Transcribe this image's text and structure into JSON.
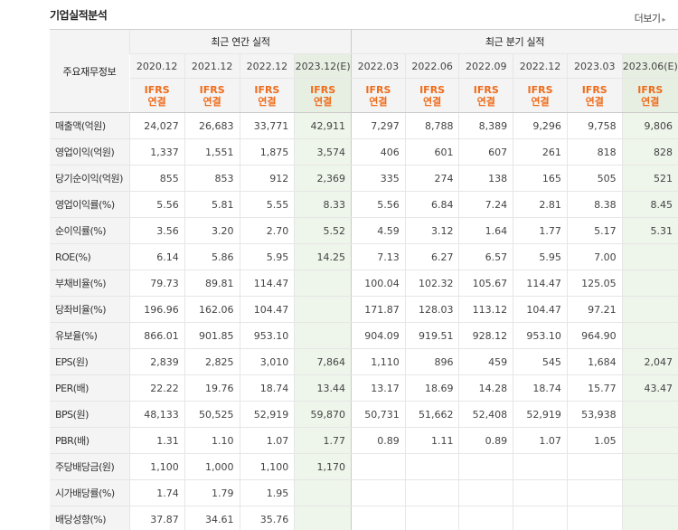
{
  "header": {
    "title": "기업실적분석",
    "more_label": "더보기"
  },
  "table": {
    "corner_label": "주요재무정보",
    "annual_group": "최근 연간 실적",
    "quarter_group": "최근 분기 실적",
    "ifrs_top": "IFRS",
    "ifrs_bottom": "연결",
    "periods": [
      "2020.12",
      "2021.12",
      "2022.12",
      "2023.12(E)",
      "2022.03",
      "2022.06",
      "2022.09",
      "2022.12",
      "2023.03",
      "2023.06(E)"
    ],
    "rows": [
      {
        "label": "매출액(억원)",
        "values": [
          "24,027",
          "26,683",
          "33,771",
          "42,911",
          "7,297",
          "8,788",
          "8,389",
          "9,296",
          "9,758",
          "9,806"
        ]
      },
      {
        "label": "영업이익(억원)",
        "values": [
          "1,337",
          "1,551",
          "1,875",
          "3,574",
          "406",
          "601",
          "607",
          "261",
          "818",
          "828"
        ]
      },
      {
        "label": "당기순이익(억원)",
        "values": [
          "855",
          "853",
          "912",
          "2,369",
          "335",
          "274",
          "138",
          "165",
          "505",
          "521"
        ]
      },
      {
        "label": "영업이익률(%)",
        "values": [
          "5.56",
          "5.81",
          "5.55",
          "8.33",
          "5.56",
          "6.84",
          "7.24",
          "2.81",
          "8.38",
          "8.45"
        ]
      },
      {
        "label": "순이익률(%)",
        "values": [
          "3.56",
          "3.20",
          "2.70",
          "5.52",
          "4.59",
          "3.12",
          "1.64",
          "1.77",
          "5.17",
          "5.31"
        ]
      },
      {
        "label": "ROE(%)",
        "values": [
          "6.14",
          "5.86",
          "5.95",
          "14.25",
          "7.13",
          "6.27",
          "6.57",
          "5.95",
          "7.00",
          ""
        ]
      },
      {
        "label": "부채비율(%)",
        "values": [
          "79.73",
          "89.81",
          "114.47",
          "",
          "100.04",
          "102.32",
          "105.67",
          "114.47",
          "125.05",
          ""
        ]
      },
      {
        "label": "당좌비율(%)",
        "values": [
          "196.96",
          "162.06",
          "104.47",
          "",
          "171.87",
          "128.03",
          "113.12",
          "104.47",
          "97.21",
          ""
        ]
      },
      {
        "label": "유보율(%)",
        "values": [
          "866.01",
          "901.85",
          "953.10",
          "",
          "904.09",
          "919.51",
          "928.12",
          "953.10",
          "964.90",
          ""
        ]
      },
      {
        "label": "EPS(원)",
        "values": [
          "2,839",
          "2,825",
          "3,010",
          "7,864",
          "1,110",
          "896",
          "459",
          "545",
          "1,684",
          "2,047"
        ]
      },
      {
        "label": "PER(배)",
        "values": [
          "22.22",
          "19.76",
          "18.74",
          "13.44",
          "13.17",
          "18.69",
          "14.28",
          "18.74",
          "15.77",
          "43.47"
        ]
      },
      {
        "label": "BPS(원)",
        "values": [
          "48,133",
          "50,525",
          "52,919",
          "59,870",
          "50,731",
          "51,662",
          "52,408",
          "52,919",
          "53,938",
          ""
        ]
      },
      {
        "label": "PBR(배)",
        "values": [
          "1.31",
          "1.10",
          "1.07",
          "1.77",
          "0.89",
          "1.11",
          "0.89",
          "1.07",
          "1.05",
          ""
        ]
      },
      {
        "label": "주당배당금(원)",
        "values": [
          "1,100",
          "1,000",
          "1,100",
          "1,170",
          "",
          "",
          "",
          "",
          "",
          ""
        ]
      },
      {
        "label": "시가배당률(%)",
        "values": [
          "1.74",
          "1.79",
          "1.95",
          "",
          "",
          "",
          "",
          "",
          "",
          ""
        ]
      },
      {
        "label": "배당성향(%)",
        "values": [
          "37.87",
          "34.61",
          "35.76",
          "",
          "",
          "",
          "",
          "",
          "",
          ""
        ]
      }
    ],
    "group_starts": [
      0,
      3,
      6,
      9,
      13
    ]
  }
}
